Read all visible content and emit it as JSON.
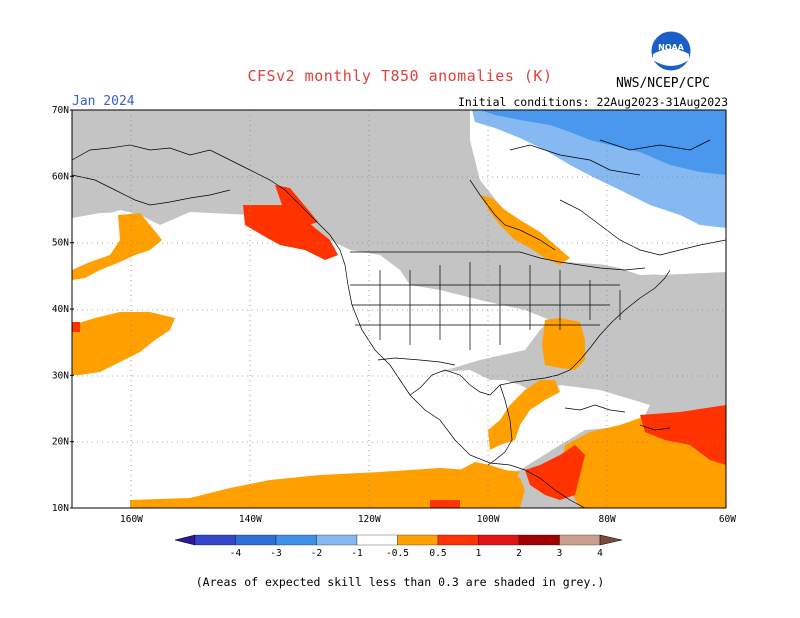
{
  "header": {
    "title": "CFSv2 monthly T850 anomalies (K)",
    "month": "Jan 2024",
    "agency": "NWS/NCEP/CPC",
    "initial_conditions": "Initial conditions: 22Aug2023-31Aug2023",
    "logo_text": "NOAA"
  },
  "axes": {
    "lat_labels": [
      "70N",
      "60N",
      "50N",
      "40N",
      "30N",
      "20N",
      "10N"
    ],
    "lat_values": [
      70,
      60,
      50,
      40,
      30,
      20,
      10
    ],
    "lon_labels": [
      "160W",
      "140W",
      "120W",
      "100W",
      "80W",
      "60W"
    ],
    "lon_values": [
      -160,
      -140,
      -120,
      -100,
      -80,
      -60
    ],
    "lon_range": [
      -170,
      -60
    ],
    "lat_range": [
      10,
      70
    ]
  },
  "colorbar": {
    "labels": [
      "-4",
      "-3",
      "-2",
      "-1",
      "-0.5",
      "0.5",
      "1",
      "2",
      "3",
      "4"
    ],
    "colors": [
      "#2a1a9a",
      "#3547c8",
      "#2f6fd8",
      "#3d8fe8",
      "#86b8f2",
      "#ffffff",
      "#ffa000",
      "#ff3300",
      "#e01414",
      "#a00000",
      "#c8a090",
      "#7a4a3a"
    ]
  },
  "colors": {
    "grey_mask": "#c4c4c4",
    "orange": "#ffa000",
    "red": "#ff3300",
    "darkred": "#c81414",
    "lightblue": "#86b8f2",
    "blue": "#4a98ee"
  },
  "footer": {
    "note": "(Areas of expected skill less than 0.3 are shaded in grey.)"
  }
}
